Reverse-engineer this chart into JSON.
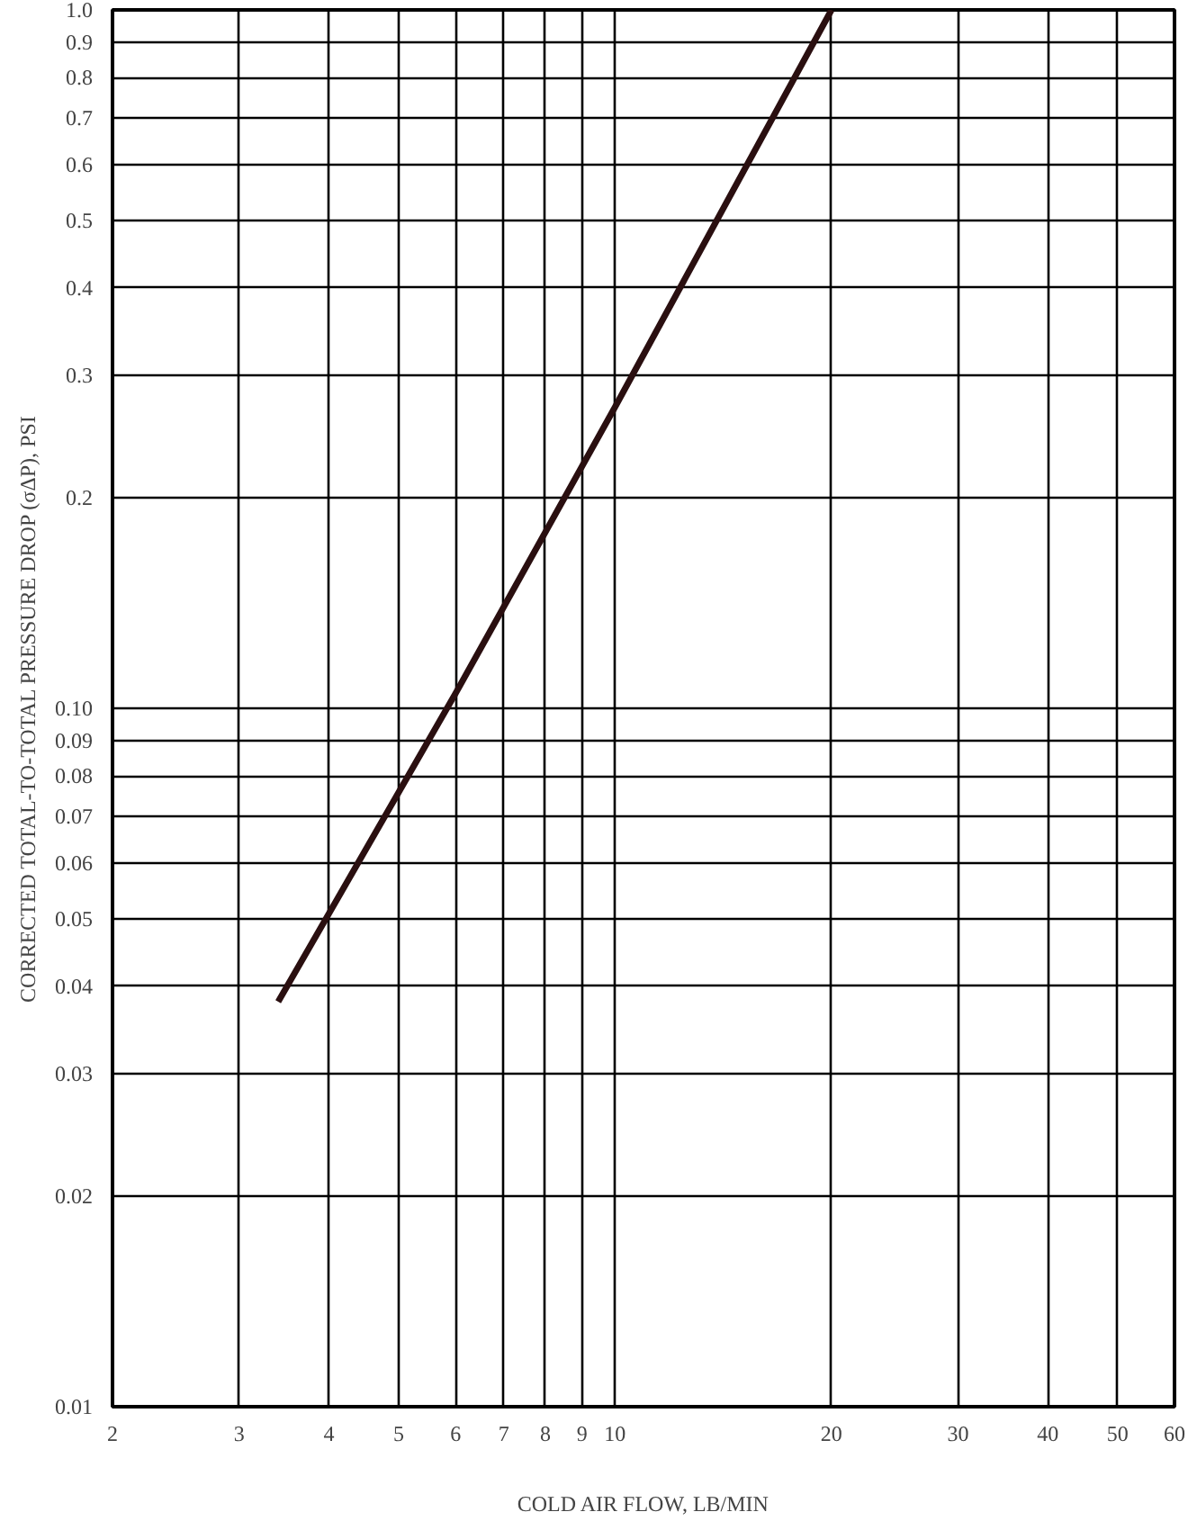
{
  "chart_data": {
    "type": "line",
    "xlabel": "COLD AIR FLOW, LB/MIN",
    "ylabel": "CORRECTED TOTAL-TO-TOTAL PRESSURE DROP (σΔP), PSI",
    "x": [
      3.4,
      6,
      10,
      20
    ],
    "series": [
      {
        "color": "#2a0f10",
        "values": [
          0.038,
          0.105,
          0.27,
          1.0
        ]
      }
    ],
    "log": "xy",
    "xlim": [
      2,
      60
    ],
    "ylim": [
      0.01,
      1.0
    ],
    "xticks": [
      2,
      3,
      4,
      5,
      6,
      7,
      8,
      9,
      10,
      20,
      30,
      40,
      50,
      60
    ],
    "yticks": [
      0.01,
      0.02,
      0.03,
      0.04,
      0.05,
      0.06,
      0.07,
      0.08,
      0.09,
      {
        "value": 0.1,
        "label": "0.10"
      },
      0.2,
      0.3,
      0.4,
      0.5,
      0.6,
      0.7,
      0.8,
      0.9,
      {
        "value": 1.0,
        "label": "1.0"
      }
    ],
    "grid": true,
    "line_style": "solid",
    "marker": "none"
  }
}
